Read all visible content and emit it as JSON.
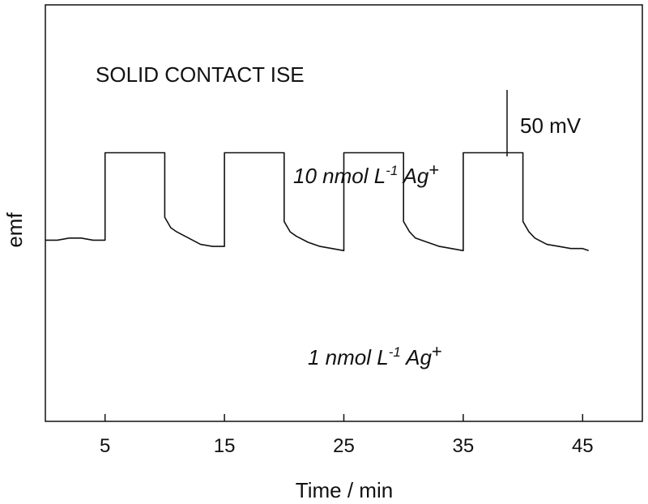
{
  "chart_data": {
    "type": "line",
    "title": "SOLID CONTACT ISE",
    "xlabel": "Time / min",
    "ylabel": "emf",
    "xlim": [
      0,
      50
    ],
    "ylim": [
      0,
      100
    ],
    "x_ticks": [
      5,
      15,
      25,
      35,
      45
    ],
    "x_tick_labels": [
      "5",
      "15",
      "25",
      "35",
      "45"
    ],
    "grid": false,
    "scale_bar": {
      "label": "50 mV",
      "value_mV": 50
    },
    "annotations": {
      "high": {
        "base": "10 nmol L",
        "exp": "-1",
        "ion": " Ag",
        "charge": "+"
      },
      "low": {
        "base": "1 nmol L",
        "exp": "-1",
        "ion": " Ag",
        "charge": "+"
      }
    },
    "series": [
      {
        "x": [
          0,
          1,
          2,
          3,
          4,
          5,
          5,
          6,
          7,
          8,
          9,
          10,
          10,
          10.5,
          11,
          12,
          13,
          14,
          15,
          15,
          16,
          17,
          18,
          19,
          20,
          20,
          20.5,
          21,
          22,
          23,
          24,
          25,
          25,
          26,
          27,
          28,
          29,
          30,
          30,
          30.5,
          31,
          32,
          33,
          34,
          35,
          35,
          36,
          37,
          38,
          39,
          40,
          40,
          40.5,
          41,
          42,
          43,
          44,
          45,
          45.5
        ],
        "y": [
          43.5,
          43.5,
          44,
          44,
          43.5,
          43.5,
          64.5,
          64.5,
          64.5,
          64.5,
          64.5,
          64.5,
          49,
          46.5,
          45.5,
          44,
          42.5,
          42,
          42,
          64.5,
          64.5,
          64.5,
          64.5,
          64.5,
          64.5,
          48,
          45.5,
          44.5,
          43,
          42,
          41.5,
          41,
          64.5,
          64.5,
          64.5,
          64.5,
          64.5,
          64.5,
          48,
          45.5,
          44,
          43,
          42,
          41.5,
          41,
          64.5,
          64.5,
          64.5,
          64.5,
          64.5,
          64.5,
          48,
          45.5,
          44,
          42.5,
          42,
          41.5,
          41.5,
          41
        ]
      }
    ]
  }
}
